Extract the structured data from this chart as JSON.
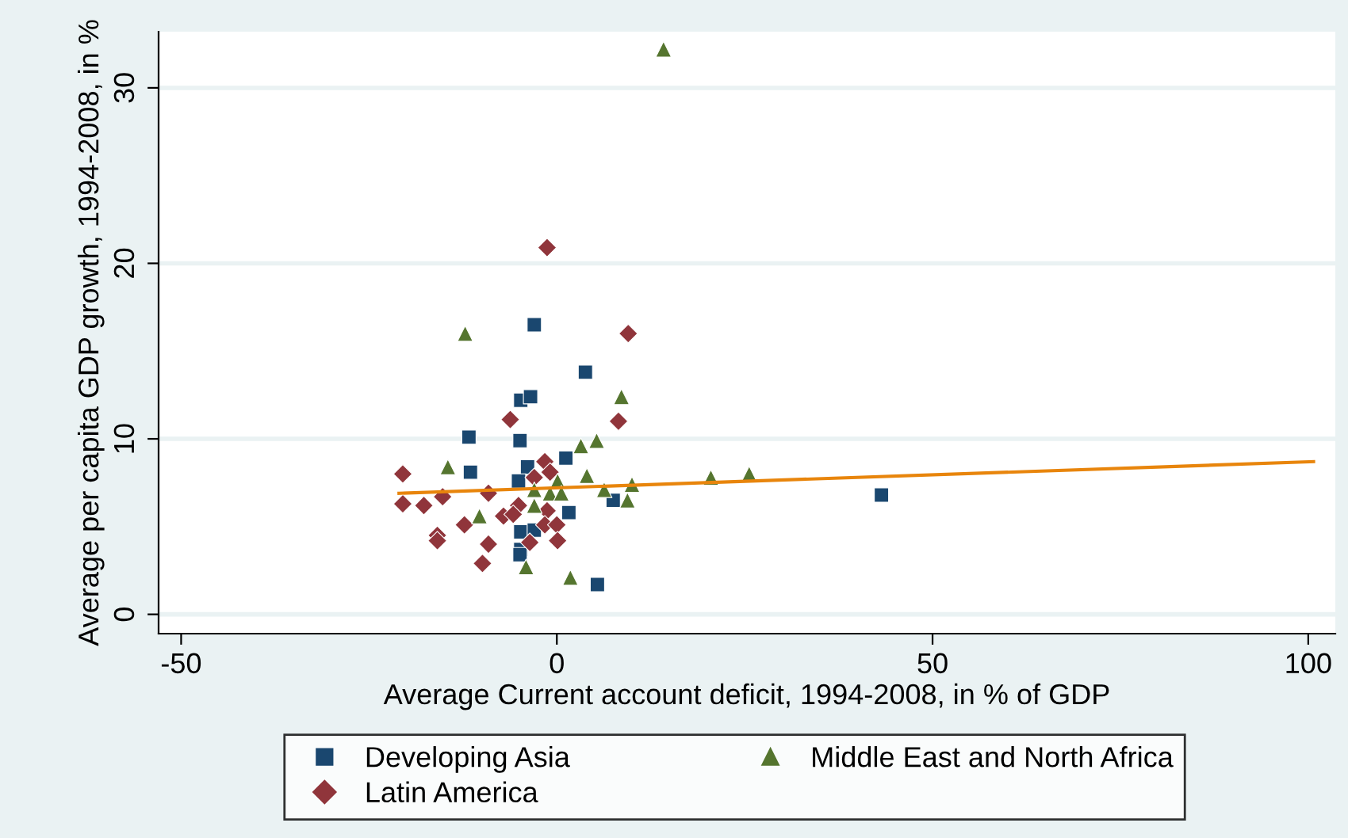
{
  "chart_data": {
    "type": "scatter",
    "xlabel": "Average Current account deficit, 1994-2008, in % of GDP",
    "ylabel": "Average per capita GDP growth, 1994-2008, in %",
    "xlim": [
      -53,
      103.6
    ],
    "ylim": [
      -1.1,
      33.2
    ],
    "xticks": [
      -50,
      0,
      50,
      100
    ],
    "yticks": [
      0,
      10,
      20,
      30
    ],
    "grid": "y",
    "legend": "bottom",
    "series": [
      {
        "name": "Developing Asia",
        "color": "#1a476f",
        "marker": "square",
        "x": [
          -3.0,
          3.8,
          -4.8,
          -3.5,
          -11.7,
          -4.9,
          -11.5,
          1.2,
          -3.9,
          -5.1,
          7.5,
          1.6,
          -4.8,
          -3.0,
          -4.8,
          -4.9,
          5.4,
          43.2
        ],
        "values": [
          16.5,
          13.8,
          12.2,
          12.4,
          10.1,
          9.9,
          8.1,
          8.9,
          8.4,
          7.6,
          6.5,
          5.8,
          4.7,
          4.8,
          3.7,
          3.4,
          1.7,
          6.8
        ]
      },
      {
        "name": "Latin America",
        "color": "#90353b",
        "marker": "diamond",
        "x": [
          -1.3,
          9.5,
          -6.2,
          8.2,
          -20.5,
          -1.6,
          -3.0,
          -0.9,
          -20.5,
          -17.7,
          -15.2,
          -9.1,
          -5.1,
          -7.1,
          -12.3,
          -1.3,
          -5.8,
          -15.9,
          -15.9,
          -9.1,
          -9.9,
          -3.6,
          -1.6,
          0.0,
          0.1
        ],
        "values": [
          20.9,
          16.0,
          11.1,
          11.0,
          8.0,
          8.7,
          7.8,
          8.1,
          6.3,
          6.2,
          6.7,
          6.9,
          6.2,
          5.6,
          5.1,
          5.9,
          5.7,
          4.5,
          4.2,
          4.0,
          2.9,
          4.1,
          5.1,
          5.1,
          4.2
        ]
      },
      {
        "name": "Middle East and North Africa",
        "color": "#55752f",
        "marker": "triangle",
        "x": [
          14.2,
          -12.2,
          8.6,
          3.2,
          5.3,
          -14.5,
          4.0,
          0.1,
          -3.0,
          -0.9,
          0.6,
          6.3,
          10.0,
          9.4,
          -3.0,
          -10.3,
          -4.1,
          1.8,
          20.5,
          25.6
        ],
        "values": [
          32.2,
          16.0,
          12.4,
          9.6,
          9.9,
          8.4,
          7.9,
          7.6,
          7.1,
          6.9,
          6.9,
          7.1,
          7.4,
          6.5,
          6.2,
          5.6,
          2.7,
          2.1,
          7.8,
          8.0
        ]
      },
      {
        "type": "line",
        "color": "#e8850c",
        "marker": "none",
        "x": [
          -21,
          100.7
        ],
        "values": [
          6.9,
          8.7
        ]
      }
    ]
  }
}
